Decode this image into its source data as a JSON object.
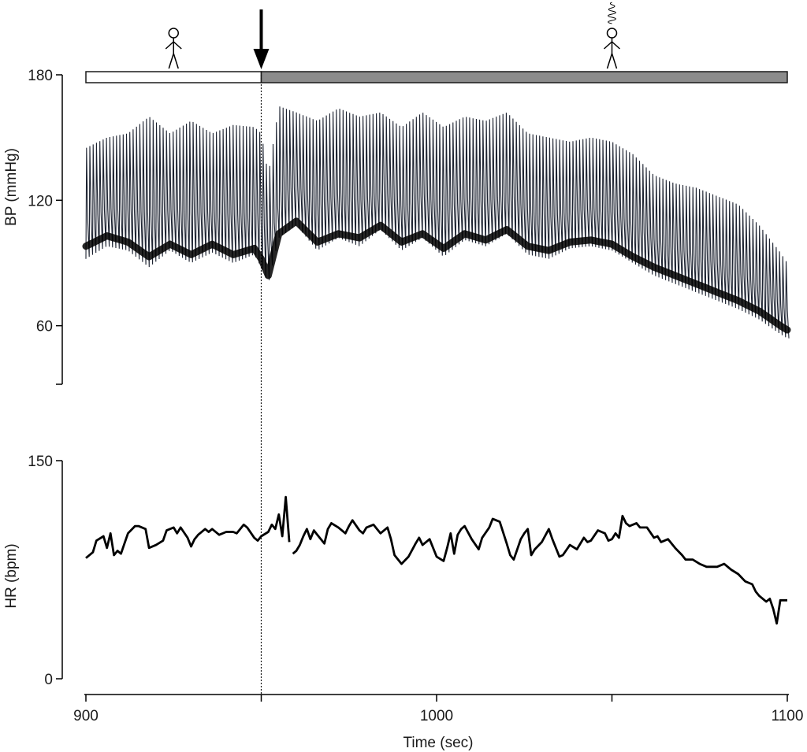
{
  "chart_data": [
    {
      "type": "line",
      "panel": "bp",
      "ylabel": "BP (mmHg)",
      "xlabel": "",
      "xlim": [
        900,
        1100
      ],
      "ylim": [
        32,
        180
      ],
      "yticks": [
        {
          "value": 180,
          "label": "180"
        },
        {
          "value": 120,
          "label": "120"
        },
        {
          "value": 60,
          "label": "60"
        }
      ],
      "phase_bar": [
        {
          "start": 900,
          "end": 950,
          "fill": "#ffffff"
        },
        {
          "start": 950,
          "end": 1100,
          "fill": "#8c8c8c"
        }
      ],
      "event_x": 950,
      "figure_icons": [
        {
          "x": 925,
          "name": "standing-person-icon"
        },
        {
          "x": 1050,
          "name": "dizzy-person-icon"
        }
      ],
      "series": [
        {
          "style": "pulsatile",
          "beat_interval_sec": 0.95,
          "x": [
            900,
            906,
            912,
            918,
            924,
            930,
            936,
            942,
            948,
            950,
            952,
            955,
            960,
            966,
            972,
            978,
            984,
            990,
            996,
            1002,
            1008,
            1014,
            1020,
            1026,
            1032,
            1038,
            1044,
            1050,
            1056,
            1062,
            1068,
            1074,
            1080,
            1086,
            1092,
            1098,
            1100
          ],
          "systolic": [
            145,
            150,
            152,
            160,
            152,
            158,
            152,
            156,
            155,
            152,
            132,
            165,
            162,
            158,
            164,
            160,
            162,
            155,
            162,
            155,
            160,
            158,
            162,
            152,
            150,
            148,
            150,
            148,
            142,
            132,
            128,
            126,
            122,
            118,
            108,
            95,
            90
          ],
          "diastolic": [
            92,
            98,
            96,
            88,
            96,
            90,
            95,
            90,
            94,
            88,
            80,
            102,
            108,
            96,
            102,
            98,
            106,
            96,
            102,
            93,
            101,
            98,
            104,
            94,
            92,
            97,
            98,
            96,
            90,
            84,
            80,
            76,
            72,
            68,
            63,
            56,
            54
          ],
          "mean": [
            98,
            103,
            100,
            93,
            99,
            94,
            99,
            94,
            97,
            92,
            84,
            104,
            110,
            100,
            104,
            102,
            108,
            100,
            104,
            97,
            104,
            101,
            106,
            98,
            96,
            100,
            101,
            99,
            93,
            88,
            84,
            80,
            76,
            72,
            67,
            60,
            58
          ]
        }
      ]
    },
    {
      "type": "line",
      "panel": "hr",
      "ylabel": "HR (bpm)",
      "xlabel": "Time (sec)",
      "xlim": [
        900,
        1100
      ],
      "ylim": [
        0,
        150
      ],
      "yticks": [
        {
          "value": 150,
          "label": "150"
        },
        {
          "value": 0,
          "label": "0"
        }
      ],
      "xticks": [
        {
          "value": 900,
          "label": "900"
        },
        {
          "value": 950,
          "label": ""
        },
        {
          "value": 1000,
          "label": "1000"
        },
        {
          "value": 1050,
          "label": ""
        },
        {
          "value": 1100,
          "label": "1100"
        }
      ],
      "series": [
        {
          "segments": [
            {
              "x": [
                900,
                902,
                903,
                905,
                906,
                907,
                908,
                909,
                910,
                911,
                912,
                914,
                915,
                917,
                918,
                920,
                922,
                923,
                925,
                926,
                927,
                929,
                930,
                931,
                932,
                934,
                935,
                936,
                938,
                940,
                942,
                943,
                945,
                946,
                948,
                949,
                950,
                952,
                953,
                954,
                955,
                956,
                957,
                958
              ],
              "y": [
                83,
                87,
                95,
                98,
                90,
                100,
                85,
                88,
                86,
                93,
                100,
                105,
                105,
                103,
                90,
                92,
                95,
                102,
                104,
                100,
                104,
                97,
                91,
                96,
                99,
                103,
                101,
                103,
                99,
                101,
                101,
                100,
                106,
                104,
                97,
                95,
                98,
                101,
                106,
                103,
                113,
                98,
                125,
                94
              ]
            },
            {
              "x": [
                959,
                960,
                961,
                962,
                963,
                964,
                965,
                966,
                968,
                969,
                970,
                972,
                974,
                975,
                976,
                978,
                979,
                980,
                982,
                983,
                984,
                986,
                987,
                988,
                990,
                992,
                994,
                995,
                996,
                998,
                1000,
                1002,
                1003,
                1004,
                1005,
                1006,
                1007,
                1008,
                1010,
                1012,
                1013,
                1015,
                1016,
                1018,
                1020,
                1021,
                1022,
                1024,
                1025,
                1026,
                1027,
                1028,
                1030,
                1032,
                1033,
                1035,
                1036,
                1038,
                1040,
                1042,
                1043,
                1044,
                1046,
                1048,
                1049,
                1050,
                1051,
                1052,
                1053,
                1054,
                1055,
                1057,
                1058,
                1060,
                1062,
                1063,
                1064,
                1066,
                1068,
                1070,
                1071,
                1073,
                1075,
                1077,
                1079,
                1080,
                1082,
                1084,
                1086,
                1088,
                1090,
                1091,
                1092,
                1094,
                1095,
                1096,
                1097,
                1098,
                1100
              ],
              "y": [
                86,
                88,
                92,
                98,
                103,
                96,
                102,
                99,
                93,
                103,
                107,
                104,
                100,
                105,
                109,
                102,
                100,
                104,
                106,
                103,
                100,
                104,
                96,
                85,
                79,
                84,
                93,
                97,
                92,
                96,
                84,
                81,
                90,
                100,
                86,
                99,
                103,
                105,
                96,
                89,
                97,
                104,
                110,
                108,
                93,
                85,
                82,
                96,
                100,
                103,
                85,
                89,
                94,
                103,
                96,
                84,
                85,
                92,
                89,
                97,
                94,
                95,
                102,
                100,
                95,
                96,
                100,
                97,
                112,
                107,
                105,
                107,
                104,
                104,
                97,
                98,
                94,
                96,
                90,
                85,
                82,
                82,
                79,
                77,
                77,
                77,
                79,
                75,
                72,
                67,
                65,
                60,
                57,
                53,
                55,
                48,
                38,
                54,
                54
              ]
            }
          ]
        }
      ]
    }
  ]
}
